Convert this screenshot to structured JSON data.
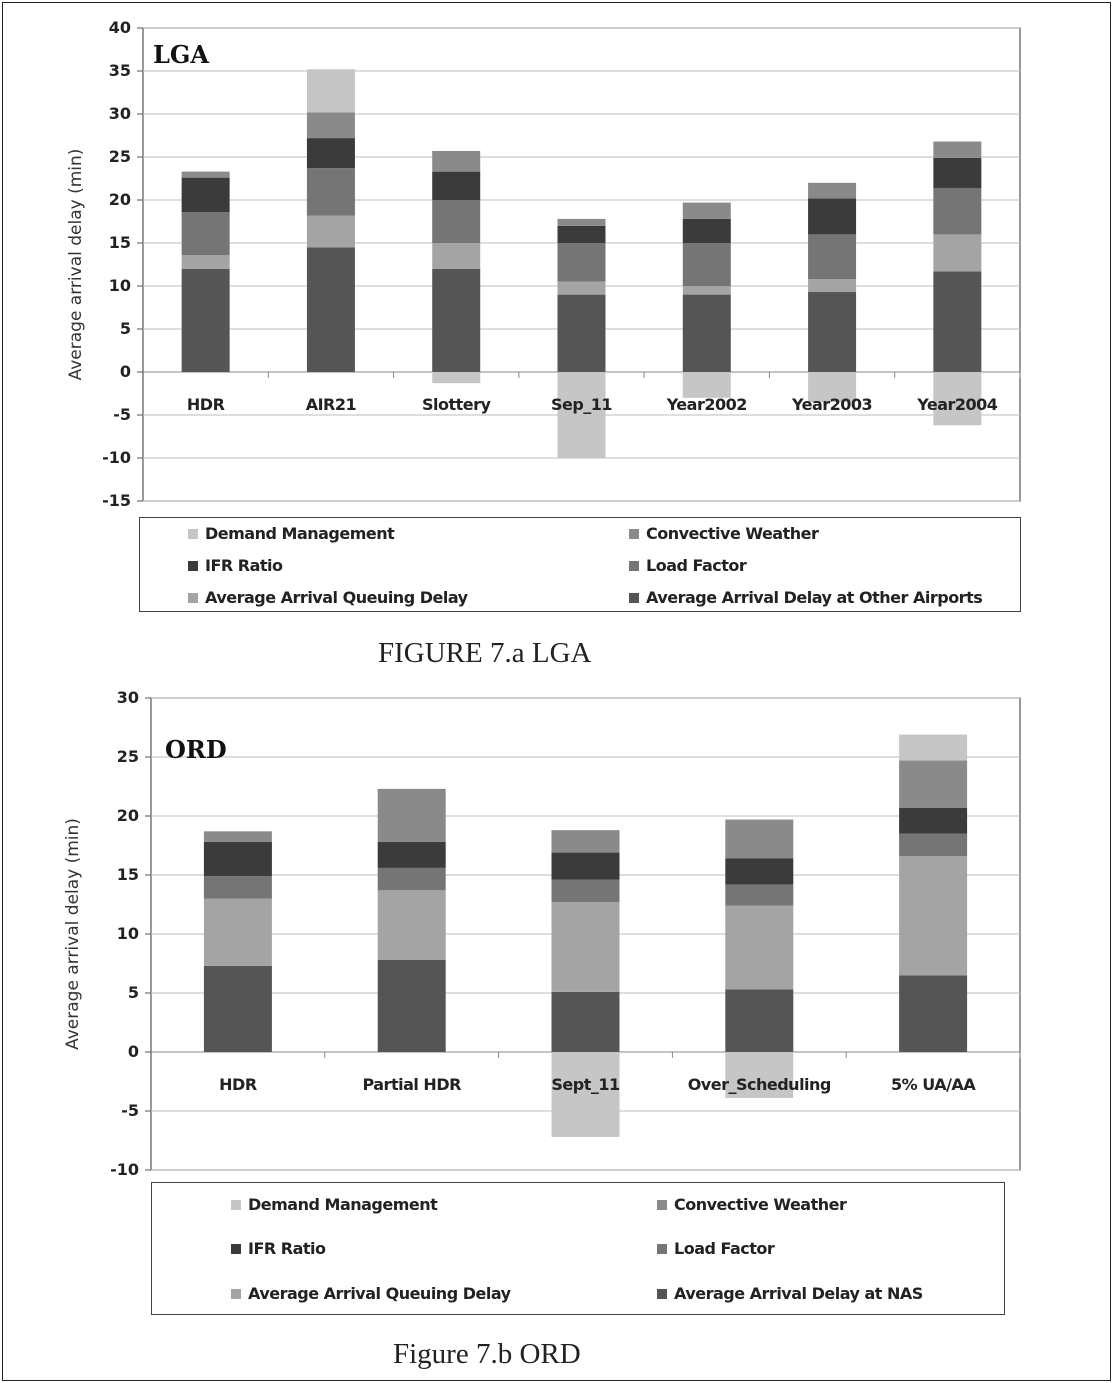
{
  "colors": {
    "demand_management": "#c6c6c6",
    "convective_weather": "#8a8a8a",
    "ifr_ratio": "#3b3b3b",
    "load_factor": "#757575",
    "queuing_delay": "#a4a4a4",
    "other_airports": "#555555"
  },
  "chart_data": [
    {
      "type": "bar",
      "stacked": true,
      "title": "LGA",
      "ylabel": "Average arrival delay (min)",
      "ylim": [
        -15,
        40
      ],
      "yticks": [
        40,
        35,
        30,
        25,
        20,
        15,
        10,
        5,
        0,
        -5,
        -10,
        -15
      ],
      "categories": [
        "HDR",
        "AIR21",
        "Slottery",
        "Sep_11",
        "Year2002",
        "Year2003",
        "Year2004"
      ],
      "series": [
        {
          "name": "Average Arrival Delay at Other Airports",
          "color_key": "other_airports",
          "values": [
            12,
            14.5,
            12,
            9,
            9,
            9.3,
            11.7
          ]
        },
        {
          "name": "Average Arrival Queuing Delay",
          "color_key": "queuing_delay",
          "values": [
            1.6,
            3.7,
            3,
            1.5,
            1,
            1.5,
            4.3
          ]
        },
        {
          "name": "Load Factor",
          "color_key": "load_factor",
          "values": [
            5,
            5.5,
            5,
            4.5,
            5,
            5.2,
            5.4
          ]
        },
        {
          "name": "IFR Ratio",
          "color_key": "ifr_ratio",
          "values": [
            4,
            3.5,
            3.3,
            2,
            2.8,
            4.2,
            3.5
          ]
        },
        {
          "name": "Convective Weather",
          "color_key": "convective_weather",
          "values": [
            0.7,
            3,
            2.4,
            0.8,
            1.9,
            1.8,
            1.9
          ]
        },
        {
          "name": "Demand Management",
          "color_key": "demand_management",
          "values": [
            0,
            5,
            -1.3,
            -10,
            -3,
            -3.5,
            -6.2
          ]
        }
      ],
      "legend": {
        "left": [
          "Demand Management",
          "IFR Ratio",
          "Average Arrival Queuing Delay"
        ],
        "right": [
          "Convective Weather",
          "Load Factor",
          "Average Arrival Delay at Other Airports"
        ]
      },
      "caption": "FIGURE 7.a LGA"
    },
    {
      "type": "bar",
      "stacked": true,
      "title": "ORD",
      "ylabel": "Average arrival delay (min)",
      "ylim": [
        -10,
        30
      ],
      "yticks": [
        30,
        25,
        20,
        15,
        10,
        5,
        0,
        -5,
        -10
      ],
      "categories": [
        "HDR",
        "Partial HDR",
        "Sept_11",
        "Over_Scheduling",
        "5% UA/AA"
      ],
      "series": [
        {
          "name": "Average Arrival Delay at NAS",
          "color_key": "other_airports",
          "values": [
            7.3,
            7.8,
            5.1,
            5.3,
            6.5
          ]
        },
        {
          "name": "Average Arrival Queuing Delay",
          "color_key": "queuing_delay",
          "values": [
            5.7,
            5.9,
            7.6,
            7.1,
            10.1
          ]
        },
        {
          "name": "Load Factor",
          "color_key": "load_factor",
          "values": [
            1.9,
            1.9,
            1.9,
            1.8,
            1.9
          ]
        },
        {
          "name": "IFR Ratio",
          "color_key": "ifr_ratio",
          "values": [
            2.9,
            2.2,
            2.3,
            2.2,
            2.2
          ]
        },
        {
          "name": "Convective Weather",
          "color_key": "convective_weather",
          "values": [
            0.9,
            4.5,
            1.9,
            3.3,
            4.0
          ]
        },
        {
          "name": "Demand Management",
          "color_key": "demand_management",
          "values": [
            0,
            0,
            -7.2,
            -3.9,
            2.2
          ]
        }
      ],
      "legend": {
        "left": [
          "Demand Management",
          "IFR Ratio",
          "Average Arrival Queuing Delay"
        ],
        "right": [
          "Convective Weather",
          "Load Factor",
          "Average Arrival Delay at NAS"
        ]
      },
      "caption": "Figure 7.b ORD"
    }
  ]
}
